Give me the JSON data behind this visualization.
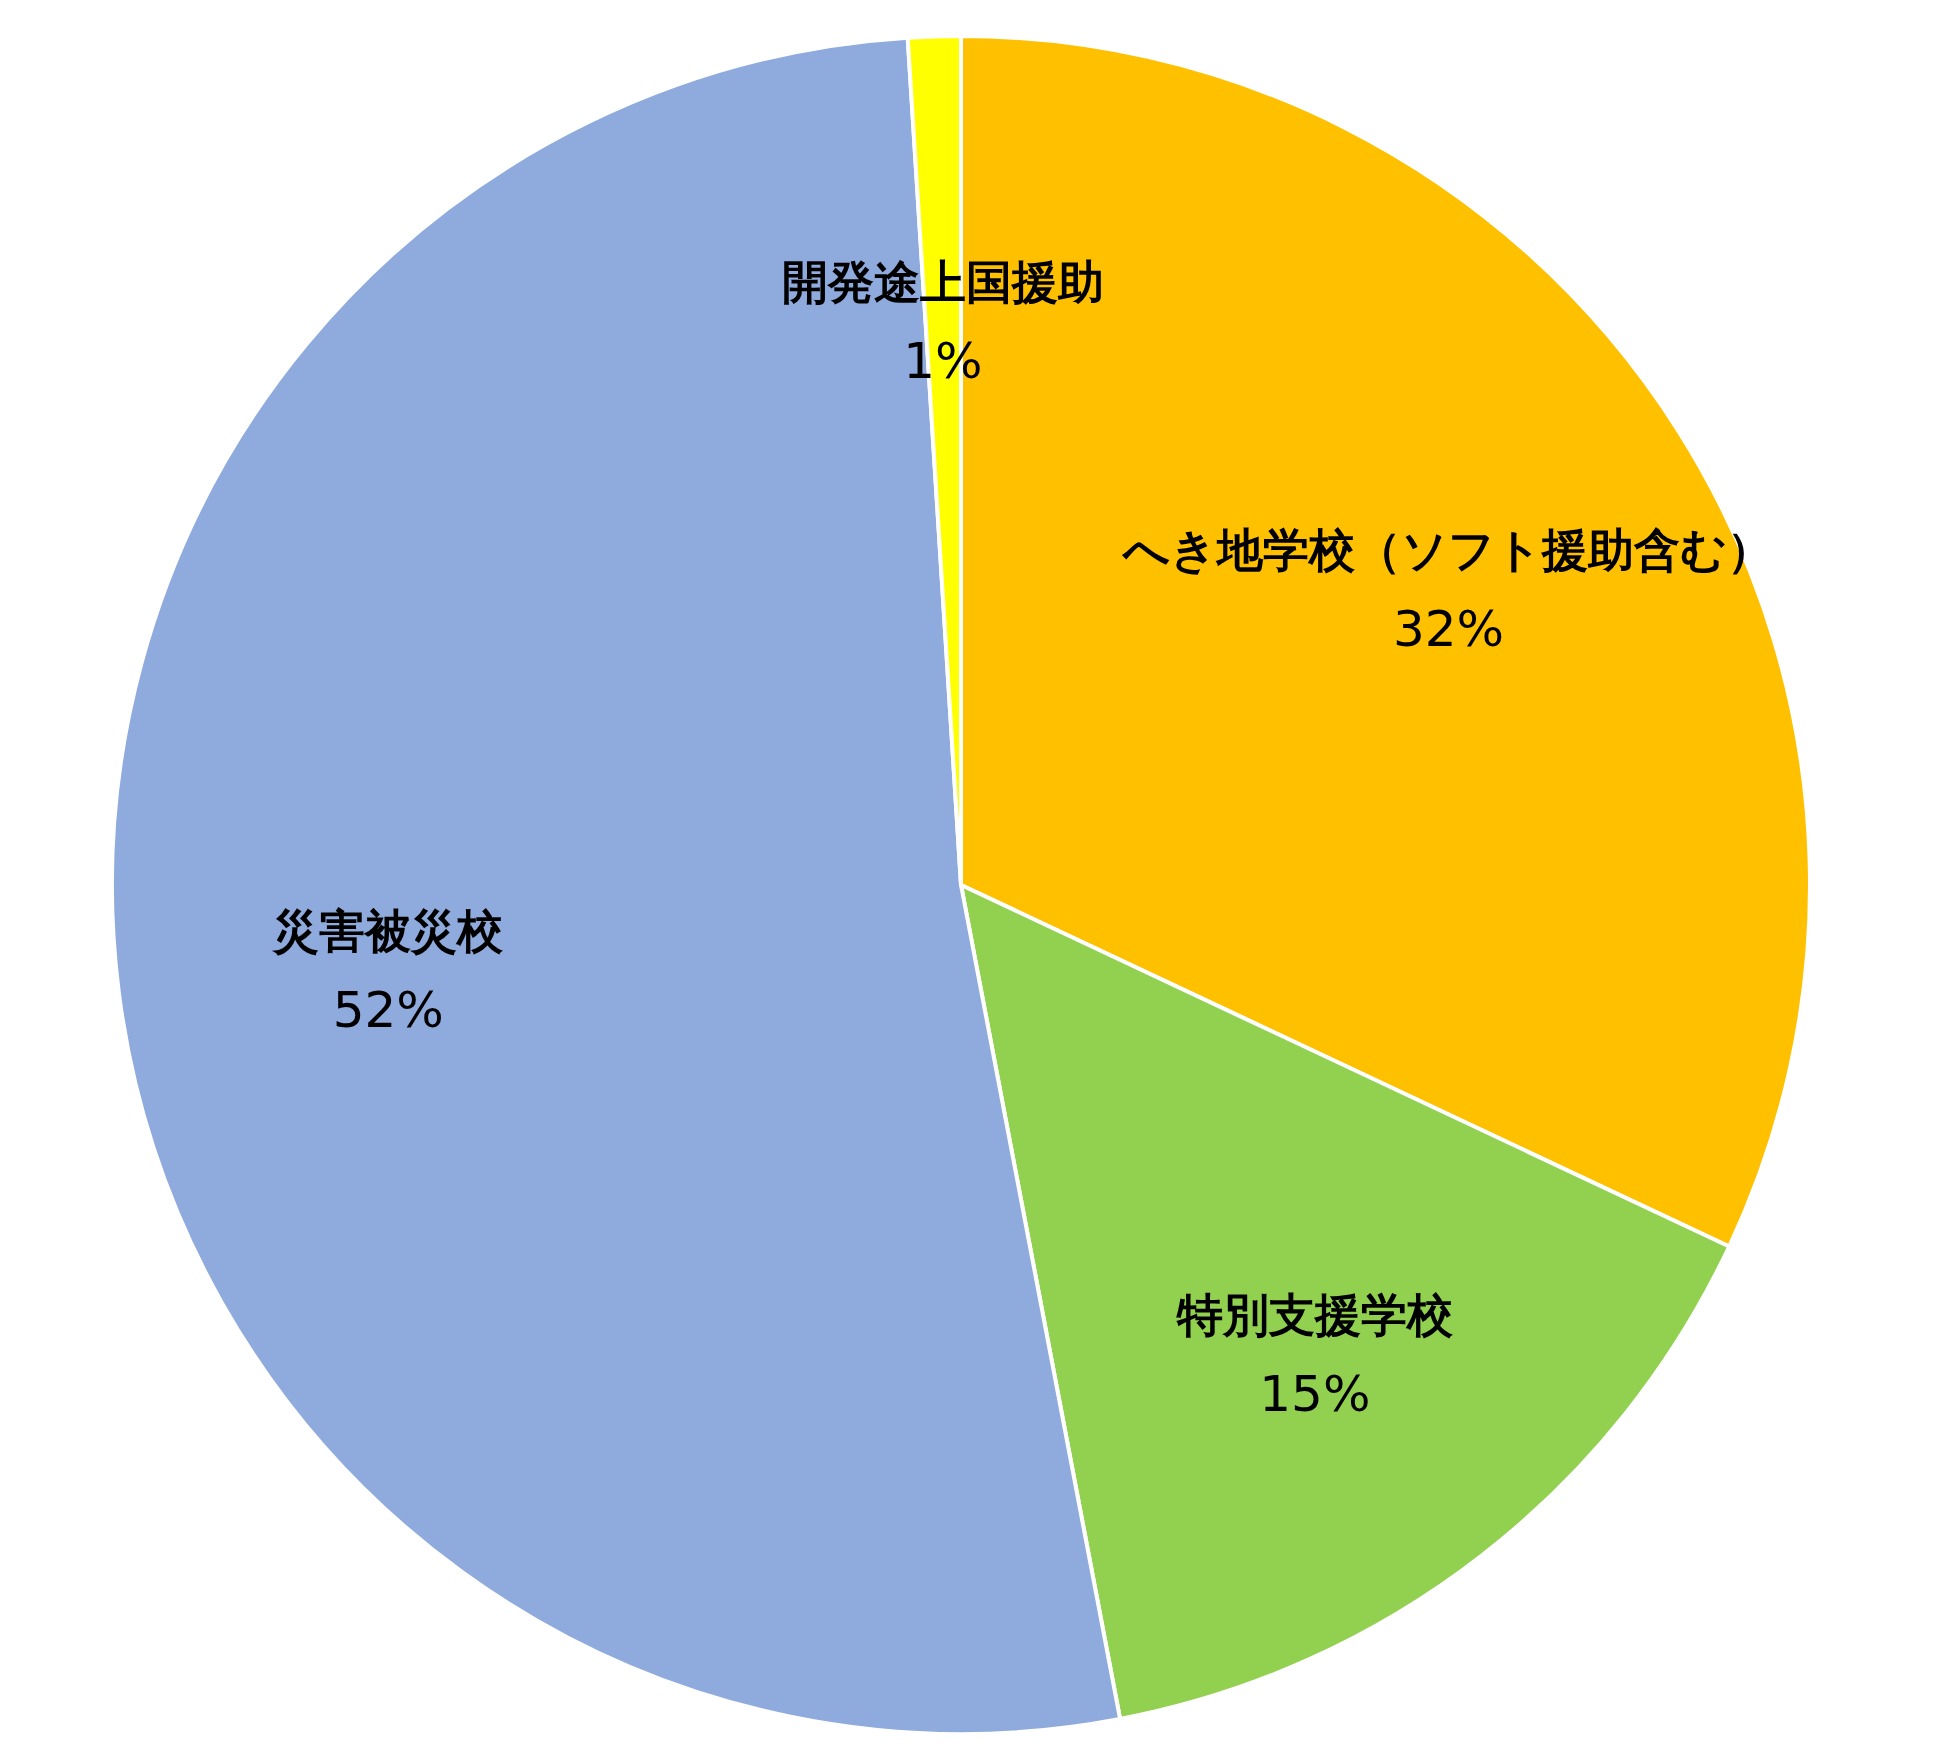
{
  "chart_data": {
    "type": "pie",
    "categories": [
      "へき地学校（ソフト援助含む）",
      "特別支援学校",
      "災害被災校",
      "開発途上国援助"
    ],
    "values": [
      32,
      15,
      52,
      1
    ],
    "colors": [
      "#ffc000",
      "#92d050",
      "#8faadc",
      "#ffff00"
    ],
    "value_labels": [
      "32%",
      "15%",
      "52%",
      "1%"
    ]
  }
}
